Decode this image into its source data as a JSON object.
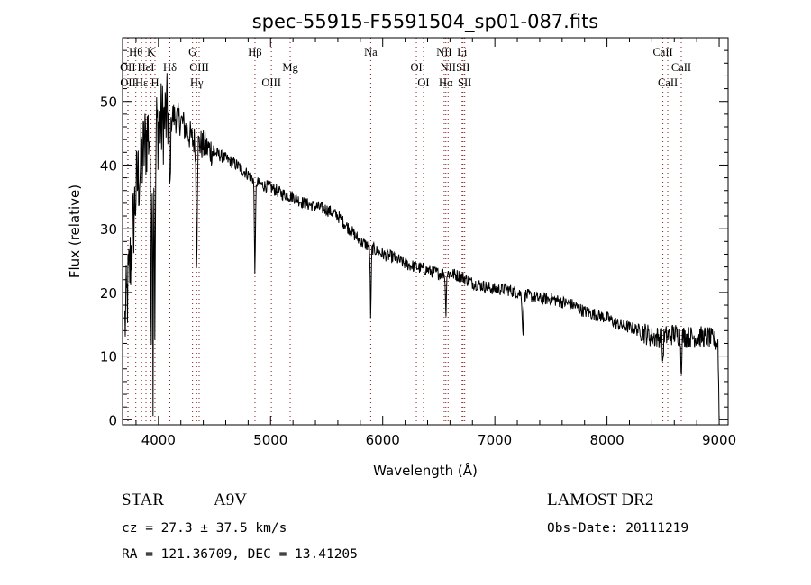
{
  "chart_data": {
    "type": "line",
    "title": "spec-55915-F5591504_sp01-087.fits",
    "xlabel": "Wavelength (Å)",
    "ylabel": "Flux (relative)",
    "xlim": [
      3680,
      9080
    ],
    "ylim": [
      -0.8,
      60
    ],
    "xticks": [
      4000,
      5000,
      6000,
      7000,
      8000,
      9000
    ],
    "yticks": [
      0,
      10,
      20,
      30,
      40,
      50
    ],
    "grid": false,
    "series": [
      {
        "name": "spectrum",
        "color": "#000000",
        "continuum_x": [
          3700,
          3750,
          3800,
          3900,
          4000,
          4100,
          4200,
          4300,
          4400,
          4500,
          4600,
          4700,
          4800,
          4900,
          5000,
          5100,
          5200,
          5300,
          5400,
          5500,
          5600,
          5700,
          5800,
          5900,
          6000,
          6100,
          6200,
          6300,
          6400,
          6500,
          6600,
          6700,
          6800,
          6900,
          7000,
          7100,
          7200,
          7300,
          7400,
          7500,
          7600,
          7700,
          7800,
          7900,
          8000,
          8100,
          8200,
          8300,
          8400,
          8500,
          8600,
          8700,
          8800,
          8900,
          8990,
          9000
        ],
        "continuum_y": [
          15,
          25,
          36,
          45,
          46,
          48,
          47,
          44,
          43,
          42,
          41,
          40,
          38.5,
          37,
          36.5,
          35.5,
          35,
          34,
          33.5,
          33,
          32,
          30,
          28,
          27,
          26,
          25.5,
          24.5,
          24,
          23.5,
          23,
          23,
          22.5,
          21.5,
          21,
          20.5,
          20.5,
          20,
          19.5,
          19,
          19,
          18.5,
          18,
          17,
          16.5,
          16,
          15,
          14.5,
          14,
          13,
          13,
          13.5,
          13,
          13,
          13,
          12,
          0
        ],
        "absorption": [
          {
            "x": 3934,
            "depth": 30,
            "width": 6
          },
          {
            "x": 3952,
            "depth": 38,
            "width": 5
          },
          {
            "x": 3969,
            "depth": 30,
            "width": 6
          },
          {
            "x": 4102,
            "depth": 12,
            "width": 8
          },
          {
            "x": 4341,
            "depth": 18,
            "width": 7
          },
          {
            "x": 4861,
            "depth": 14,
            "width": 7
          },
          {
            "x": 5893,
            "depth": 11,
            "width": 6
          },
          {
            "x": 6563,
            "depth": 6,
            "width": 6
          },
          {
            "x": 7250,
            "depth": 6,
            "width": 8
          },
          {
            "x": 8498,
            "depth": 4,
            "width": 6
          },
          {
            "x": 8662,
            "depth": 5,
            "width": 6
          }
        ]
      }
    ],
    "line_marker_color": "#8b1a1a",
    "line_markers": [
      {
        "label": "Hθ",
        "x": 3798,
        "row": 0
      },
      {
        "label": "K",
        "x": 3934,
        "row": 0
      },
      {
        "label": "G",
        "x": 4304,
        "row": 0
      },
      {
        "label": "Hβ",
        "x": 4861,
        "row": 0
      },
      {
        "label": "Na",
        "x": 5893,
        "row": 0
      },
      {
        "label": "NII",
        "x": 6548,
        "row": 0
      },
      {
        "label": "Li",
        "x": 6708,
        "row": 0
      },
      {
        "label": "CaII",
        "x": 8498,
        "row": 0
      },
      {
        "label": "OII",
        "x": 3727,
        "row": 1
      },
      {
        "label": "HeI",
        "x": 3889,
        "row": 1
      },
      {
        "label": "Hδ",
        "x": 4102,
        "row": 1
      },
      {
        "label": "OIII",
        "x": 4363,
        "row": 1
      },
      {
        "label": "Mg",
        "x": 5175,
        "row": 1
      },
      {
        "label": "OI",
        "x": 6300,
        "row": 1
      },
      {
        "label": "NII",
        "x": 6583,
        "row": 1
      },
      {
        "label": "SII",
        "x": 6716,
        "row": 1
      },
      {
        "label": "CaII",
        "x": 8662,
        "row": 1
      },
      {
        "label": "OII",
        "x": 3729,
        "row": 2
      },
      {
        "label": "Hε",
        "x": 3850,
        "row": 2
      },
      {
        "label": "H",
        "x": 3969,
        "row": 2
      },
      {
        "label": "Hγ",
        "x": 4341,
        "row": 2
      },
      {
        "label": "OIII",
        "x": 5007,
        "row": 2
      },
      {
        "label": "OI",
        "x": 6364,
        "row": 2
      },
      {
        "label": "Hα",
        "x": 6563,
        "row": 2
      },
      {
        "label": "SII",
        "x": 6731,
        "row": 2
      },
      {
        "label": "CaII",
        "x": 8542,
        "row": 2
      }
    ]
  },
  "info": {
    "class": "STAR",
    "subclass": "A9V",
    "survey": "LAMOST DR2",
    "cz": "cz = 27.3 ± 37.5 km/s",
    "obs_date": "Obs-Date: 20111219",
    "coords": "RA = 121.36709, DEC =  13.41205"
  }
}
